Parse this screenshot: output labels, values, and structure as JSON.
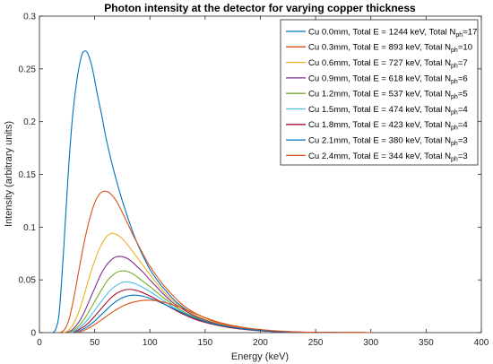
{
  "chart_data": {
    "type": "line",
    "title": "Photon intensity at the detector for varying copper thickness",
    "xlabel": "Energy (keV)",
    "ylabel": "Intensity (arbitrary units)",
    "xlim": [
      0,
      400
    ],
    "ylim": [
      0,
      0.3
    ],
    "xticks": [
      "0",
      "50",
      "100",
      "150",
      "200",
      "250",
      "300",
      "350",
      "400"
    ],
    "yticks": [
      "0",
      "0.05",
      "0.1",
      "0.15",
      "0.2",
      "0.25",
      "0.3"
    ],
    "grid": false,
    "legend_position": "top-right",
    "series": [
      {
        "name": "Cu 0.0mm, Total E = 1244 keV, Total N",
        "name_sub": "ph",
        "name_tail": "=17",
        "color": "#0072BD",
        "x": [
          12,
          15,
          18,
          22,
          26,
          30,
          34,
          38,
          41,
          44,
          48,
          52,
          56,
          60,
          65,
          70,
          75,
          80,
          85,
          90,
          95,
          100,
          105,
          110,
          115,
          120,
          125,
          130,
          140,
          150,
          160,
          170,
          180,
          190,
          200,
          210,
          220,
          230,
          240,
          250,
          260,
          275,
          300
        ],
        "y": [
          0,
          0.004,
          0.02,
          0.08,
          0.15,
          0.205,
          0.24,
          0.262,
          0.267,
          0.264,
          0.25,
          0.228,
          0.208,
          0.186,
          0.163,
          0.143,
          0.125,
          0.109,
          0.094,
          0.081,
          0.07,
          0.06,
          0.052,
          0.045,
          0.039,
          0.033,
          0.028,
          0.024,
          0.017,
          0.012,
          0.0085,
          0.006,
          0.0042,
          0.003,
          0.002,
          0.0013,
          0.0008,
          0.0005,
          0.0003,
          0.0002,
          0.0001,
          5e-05,
          0
        ]
      },
      {
        "name": "Cu 0.3mm, Total E = 893 keV, Total N",
        "name_sub": "ph",
        "name_tail": "=10",
        "color": "#D95319",
        "x": [
          18,
          22,
          26,
          30,
          35,
          40,
          45,
          50,
          55,
          60,
          65,
          70,
          75,
          80,
          85,
          90,
          95,
          100,
          110,
          120,
          130,
          140,
          150,
          160,
          170,
          180,
          190,
          200,
          210,
          220,
          230,
          240,
          250,
          260,
          275,
          300
        ],
        "y": [
          0,
          0.002,
          0.01,
          0.027,
          0.055,
          0.083,
          0.106,
          0.123,
          0.132,
          0.134,
          0.131,
          0.124,
          0.114,
          0.103,
          0.092,
          0.082,
          0.072,
          0.063,
          0.048,
          0.036,
          0.026,
          0.019,
          0.014,
          0.0098,
          0.007,
          0.0049,
          0.0034,
          0.0023,
          0.0015,
          0.0009,
          0.0006,
          0.0004,
          0.00025,
          0.00015,
          5e-05,
          0
        ]
      },
      {
        "name": "Cu 0.6mm, Total E = 727 keV, Total N",
        "name_sub": "ph",
        "name_tail": "=7",
        "color": "#EDB120",
        "x": [
          22,
          26,
          30,
          35,
          40,
          45,
          50,
          55,
          60,
          65,
          70,
          75,
          80,
          85,
          90,
          95,
          100,
          110,
          120,
          130,
          140,
          150,
          160,
          170,
          180,
          190,
          200,
          210,
          220,
          230,
          240,
          250,
          260,
          275,
          300
        ],
        "y": [
          0,
          0.002,
          0.007,
          0.018,
          0.034,
          0.052,
          0.068,
          0.081,
          0.09,
          0.094,
          0.093,
          0.089,
          0.083,
          0.076,
          0.069,
          0.062,
          0.055,
          0.042,
          0.031,
          0.023,
          0.017,
          0.0125,
          0.0089,
          0.0063,
          0.0044,
          0.0031,
          0.0021,
          0.0014,
          0.0009,
          0.0006,
          0.0004,
          0.00025,
          0.00015,
          5e-05,
          0
        ]
      },
      {
        "name": "Cu 0.9mm, Total E = 618 keV, Total N",
        "name_sub": "ph",
        "name_tail": "=6",
        "color": "#7E2F8E",
        "x": [
          25,
          30,
          35,
          40,
          45,
          50,
          55,
          60,
          65,
          70,
          75,
          80,
          85,
          90,
          95,
          100,
          110,
          120,
          130,
          140,
          150,
          160,
          170,
          180,
          190,
          200,
          210,
          220,
          230,
          240,
          250,
          260,
          275,
          300
        ],
        "y": [
          0,
          0.003,
          0.009,
          0.018,
          0.03,
          0.042,
          0.054,
          0.063,
          0.069,
          0.072,
          0.072,
          0.07,
          0.066,
          0.061,
          0.056,
          0.05,
          0.039,
          0.029,
          0.022,
          0.016,
          0.0118,
          0.0085,
          0.006,
          0.0042,
          0.0029,
          0.002,
          0.0013,
          0.0009,
          0.0006,
          0.0004,
          0.00025,
          0.00015,
          5e-05,
          0
        ]
      },
      {
        "name": "Cu 1.2mm, Total E = 537 keV, Total N",
        "name_sub": "ph",
        "name_tail": "=5",
        "color": "#77AC30",
        "x": [
          27,
          32,
          37,
          42,
          47,
          52,
          57,
          62,
          67,
          72,
          77,
          82,
          87,
          92,
          97,
          102,
          110,
          120,
          130,
          140,
          150,
          160,
          170,
          180,
          190,
          200,
          210,
          220,
          230,
          240,
          250,
          260,
          275,
          300
        ],
        "y": [
          0,
          0.003,
          0.008,
          0.015,
          0.024,
          0.033,
          0.042,
          0.05,
          0.055,
          0.058,
          0.0585,
          0.057,
          0.054,
          0.05,
          0.046,
          0.042,
          0.035,
          0.027,
          0.02,
          0.015,
          0.011,
          0.008,
          0.0057,
          0.004,
          0.0028,
          0.0019,
          0.0013,
          0.0009,
          0.0006,
          0.0004,
          0.00025,
          0.00015,
          5e-05,
          0
        ]
      },
      {
        "name": "Cu 1.5mm, Total E = 474 keV, Total N",
        "name_sub": "ph",
        "name_tail": "=4",
        "color": "#4DBEEE",
        "x": [
          29,
          34,
          40,
          45,
          50,
          55,
          60,
          65,
          70,
          75,
          80,
          85,
          90,
          95,
          100,
          110,
          120,
          130,
          140,
          150,
          160,
          170,
          180,
          190,
          200,
          210,
          220,
          230,
          240,
          250,
          260,
          275,
          300
        ],
        "y": [
          0,
          0.003,
          0.008,
          0.014,
          0.021,
          0.028,
          0.035,
          0.041,
          0.045,
          0.0475,
          0.048,
          0.047,
          0.0448,
          0.042,
          0.039,
          0.032,
          0.025,
          0.019,
          0.014,
          0.0104,
          0.0076,
          0.0054,
          0.0038,
          0.0027,
          0.0018,
          0.0012,
          0.0008,
          0.0005,
          0.0003,
          0.0002,
          0.0001,
          5e-05,
          0
        ]
      },
      {
        "name": "Cu 1.8mm, Total E = 423 keV, Total N",
        "name_sub": "ph",
        "name_tail": "=4",
        "color": "#A2142F",
        "x": [
          31,
          36,
          42,
          47,
          52,
          57,
          62,
          67,
          72,
          77,
          82,
          87,
          92,
          97,
          102,
          110,
          120,
          130,
          140,
          150,
          160,
          170,
          180,
          190,
          200,
          210,
          220,
          230,
          240,
          250,
          260,
          275,
          300
        ],
        "y": [
          0,
          0.003,
          0.007,
          0.012,
          0.018,
          0.024,
          0.03,
          0.035,
          0.0385,
          0.0405,
          0.041,
          0.0402,
          0.0385,
          0.0362,
          0.0337,
          0.029,
          0.023,
          0.0175,
          0.013,
          0.0097,
          0.0071,
          0.0051,
          0.0036,
          0.0026,
          0.0017,
          0.0011,
          0.0007,
          0.0005,
          0.0003,
          0.0002,
          0.0001,
          5e-05,
          0
        ]
      },
      {
        "name": "Cu 2.1mm, Total E = 380 keV, Total N",
        "name_sub": "ph",
        "name_tail": "=3",
        "color": "#0072BD",
        "x": [
          33,
          38,
          44,
          50,
          55,
          60,
          65,
          70,
          75,
          80,
          85,
          90,
          95,
          100,
          105,
          110,
          120,
          130,
          140,
          150,
          160,
          170,
          180,
          190,
          200,
          210,
          220,
          230,
          240,
          250,
          260,
          275,
          300
        ],
        "y": [
          0,
          0.0025,
          0.006,
          0.011,
          0.016,
          0.021,
          0.026,
          0.03,
          0.033,
          0.0348,
          0.0355,
          0.0352,
          0.0342,
          0.0325,
          0.0305,
          0.0284,
          0.0235,
          0.0185,
          0.014,
          0.0105,
          0.0078,
          0.0057,
          0.0041,
          0.0029,
          0.002,
          0.0013,
          0.0009,
          0.0006,
          0.0004,
          0.00025,
          0.00015,
          5e-05,
          0
        ]
      },
      {
        "name": "Cu 2.4mm, Total E = 344 keV, Total N",
        "name_sub": "ph",
        "name_tail": "=3",
        "color": "#D95319",
        "x": [
          35,
          40,
          46,
          52,
          58,
          64,
          70,
          76,
          82,
          88,
          94,
          100,
          106,
          112,
          120,
          130,
          140,
          150,
          160,
          170,
          180,
          190,
          200,
          210,
          220,
          230,
          240,
          250,
          260,
          275,
          300
        ],
        "y": [
          0,
          0.002,
          0.005,
          0.009,
          0.0135,
          0.018,
          0.022,
          0.0255,
          0.028,
          0.0296,
          0.0305,
          0.0307,
          0.0302,
          0.029,
          0.0265,
          0.0228,
          0.0185,
          0.0142,
          0.0106,
          0.0078,
          0.0057,
          0.0041,
          0.0029,
          0.002,
          0.0013,
          0.0008,
          0.0005,
          0.0003,
          0.0002,
          5e-05,
          0
        ]
      }
    ]
  }
}
